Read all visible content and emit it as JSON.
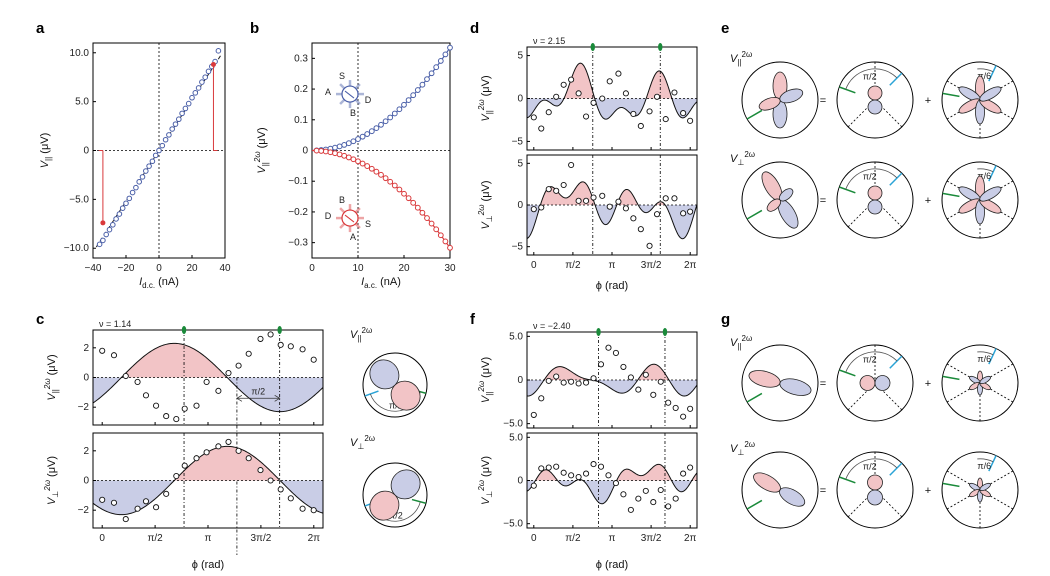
{
  "colors": {
    "blue": "#4a5fa8",
    "red": "#d9393b",
    "pink": "#f2c4c6",
    "lightblue": "#c9cde6",
    "green": "#1a8a3a",
    "cyan": "#2aa3d6",
    "gray": "#888888"
  },
  "phi_ticks": [
    "0",
    "π/2",
    "π",
    "3π/2",
    "2π"
  ],
  "chart_data": [
    {
      "id": "a",
      "panel": "a",
      "type": "scatter",
      "xlabel": "I",
      "xlabel_sub": "d.c.",
      "xlabel_unit": "(nA)",
      "ylabel": "V",
      "ylabel_sub": "||",
      "ylabel_unit": "(μV)",
      "xlim": [
        -40,
        40
      ],
      "ylim": [
        -11,
        11
      ],
      "xticks": [
        -40,
        -20,
        0,
        20,
        40
      ],
      "xtick_labels": [
        "−40",
        "−20",
        "0",
        "20",
        "40"
      ],
      "yticks": [
        -10,
        -5,
        0,
        5,
        10
      ],
      "ytick_labels": [
        "−10.0",
        "−5.0",
        "0",
        "5.0",
        "10.0"
      ],
      "x": [
        -36,
        -34,
        -32,
        -30,
        -28,
        -26,
        -24,
        -22,
        -20,
        -18,
        -16,
        -14,
        -12,
        -10,
        -8,
        -6,
        -4,
        -2,
        0,
        2,
        4,
        6,
        8,
        10,
        12,
        14,
        16,
        18,
        20,
        22,
        24,
        26,
        28,
        30,
        32,
        34,
        36
      ],
      "y": [
        -9.6,
        -9.2,
        -8.6,
        -8.1,
        -7.6,
        -7.0,
        -6.5,
        -5.9,
        -5.4,
        -4.9,
        -4.3,
        -3.8,
        -3.2,
        -2.7,
        -2.1,
        -1.6,
        -1.1,
        -0.5,
        0,
        0.5,
        1.1,
        1.6,
        2.2,
        2.7,
        3.2,
        3.8,
        4.3,
        4.8,
        5.4,
        5.9,
        6.4,
        7.0,
        7.5,
        8.1,
        8.6,
        9.1,
        10.2
      ],
      "highlight_points": [
        {
          "x": -34,
          "y": -7.4
        },
        {
          "x": 33,
          "y": 8.8
        }
      ],
      "fit_slope": 0.26
    },
    {
      "id": "b",
      "panel": "b",
      "type": "scatter",
      "xlabel": "I",
      "xlabel_sub": "a.c.",
      "xlabel_unit": "(nA)",
      "ylabel": "V",
      "ylabel_sub": "||",
      "ylabel_sup": "2ω",
      "ylabel_unit": "(μV)",
      "xlim": [
        0,
        30
      ],
      "ylim": [
        -0.35,
        0.35
      ],
      "xticks": [
        0,
        10,
        20,
        30
      ],
      "xtick_labels": [
        "0",
        "10",
        "20",
        "30"
      ],
      "yticks": [
        -0.3,
        -0.2,
        -0.1,
        0,
        0.1,
        0.2,
        0.3
      ],
      "ytick_labels": [
        "−0.3",
        "−0.2",
        "−0.1",
        "0",
        "0.1",
        "0.2",
        "0.3"
      ],
      "series": [
        {
          "name": "blue",
          "color": "#4a5fa8",
          "coef": 0.000372
        },
        {
          "name": "red",
          "color": "#d9393b",
          "coef": -0.000352
        }
      ],
      "x": [
        0,
        1,
        2,
        3,
        4,
        5,
        6,
        7,
        8,
        9,
        10,
        11,
        12,
        13,
        14,
        15,
        16,
        17,
        18,
        19,
        20,
        21,
        22,
        23,
        24,
        25,
        26,
        27,
        28,
        29,
        30
      ],
      "inset_labels_top": [
        "A",
        "S",
        "D",
        "B"
      ],
      "inset_labels_bottom": [
        "D",
        "B",
        "S",
        "A"
      ]
    },
    {
      "id": "c_top",
      "panel": "c",
      "type": "scatter-line",
      "nu_label": "ν = 1.14",
      "ylabel": "V",
      "ylabel_sub": "||",
      "ylabel_sup": "2ω",
      "ylabel_unit": "(μV)",
      "ylim": [
        -3.2,
        3.2
      ],
      "yticks": [
        -2,
        0,
        2
      ],
      "ytick_labels": [
        "−2",
        "0",
        "2"
      ],
      "x": [
        0,
        0.35,
        0.7,
        1.05,
        1.3,
        1.6,
        1.9,
        2.2,
        2.45,
        2.8,
        3.1,
        3.45,
        3.75,
        4.05,
        4.35,
        4.7,
        5.0,
        5.3,
        5.6,
        5.95,
        6.28
      ],
      "y": [
        1.8,
        1.5,
        0.1,
        -0.3,
        -1.2,
        -1.9,
        -2.6,
        -2.8,
        -2.1,
        -1.9,
        -0.3,
        -0.9,
        0.3,
        0.8,
        1.6,
        2.6,
        2.9,
        2.2,
        2.1,
        1.9,
        1.2
      ],
      "fit": {
        "a": 2.3,
        "phase": -0.57
      },
      "vlines": [
        2.43,
        5.27
      ],
      "annotation": "π/2"
    },
    {
      "id": "c_bot",
      "panel": "c",
      "type": "scatter-line",
      "ylabel": "V",
      "ylabel_sub": "⊥",
      "ylabel_sup": "2ω",
      "ylabel_unit": "(μV)",
      "ylim": [
        -3.2,
        3.2
      ],
      "yticks": [
        -2,
        0,
        2
      ],
      "ytick_labels": [
        "−2",
        "0",
        "2"
      ],
      "x": [
        0,
        0.35,
        0.7,
        1.05,
        1.3,
        1.6,
        1.9,
        2.2,
        2.45,
        2.8,
        3.1,
        3.45,
        3.75,
        4.05,
        4.35,
        4.7,
        5.0,
        5.3,
        5.6,
        5.95,
        6.28
      ],
      "y": [
        -1.3,
        -1.5,
        -2.6,
        -1.9,
        -1.4,
        -1.8,
        -0.9,
        0.3,
        1.0,
        1.5,
        1.9,
        2.3,
        2.6,
        2.0,
        1.5,
        0.7,
        0.0,
        -0.6,
        -1.2,
        -1.9,
        -2.0
      ],
      "fit": {
        "a": 2.3,
        "phase": -2.14
      },
      "vlines": [
        2.43,
        5.27
      ]
    },
    {
      "id": "d_top",
      "panel": "d",
      "type": "scatter-line",
      "nu_label": "ν = 2.15",
      "ylabel": "V",
      "ylabel_sub": "||",
      "ylabel_sup": "2ω",
      "ylabel_unit": "(μV)",
      "ylim": [
        -6,
        6
      ],
      "yticks": [
        -5,
        0,
        5
      ],
      "ytick_labels": [
        "−5",
        "0",
        "5"
      ],
      "x": [
        0,
        0.3,
        0.6,
        0.9,
        1.2,
        1.5,
        1.8,
        2.1,
        2.4,
        2.75,
        3.05,
        3.4,
        3.7,
        4.0,
        4.3,
        4.65,
        4.95,
        5.3,
        5.65,
        6.0,
        6.28
      ],
      "y": [
        -2.2,
        -3.5,
        -1.6,
        0.2,
        1.6,
        2.2,
        0.6,
        -2.1,
        -0.5,
        0.0,
        2.0,
        2.9,
        0.6,
        -1.8,
        -3.2,
        -1.5,
        0.2,
        -2.4,
        0.7,
        -1.7,
        -2.6
      ],
      "fit": {
        "terms": [
          [
            1,
            0.6,
            0.4
          ],
          [
            2,
            -2.2,
            1.1
          ],
          [
            4,
            1.5,
            0.2
          ]
        ]
      },
      "vlines": [
        2.37,
        5.08
      ]
    },
    {
      "id": "d_bot",
      "panel": "d",
      "type": "scatter-line",
      "ylabel": "V",
      "ylabel_sub": "⊥",
      "ylabel_sup": "2ω",
      "ylabel_unit": "(μV)",
      "ylim": [
        -6,
        6
      ],
      "yticks": [
        -5,
        0,
        5
      ],
      "ytick_labels": [
        "−5",
        "0",
        "5"
      ],
      "x": [
        0,
        0.3,
        0.6,
        0.9,
        1.2,
        1.5,
        1.8,
        2.1,
        2.4,
        2.75,
        3.05,
        3.4,
        3.7,
        4.0,
        4.3,
        4.65,
        4.95,
        5.3,
        5.65,
        6.0,
        6.28
      ],
      "y": [
        -0.5,
        -0.3,
        1.9,
        1.7,
        2.4,
        4.8,
        0.5,
        0.5,
        0.9,
        1.1,
        -0.2,
        0.4,
        -0.4,
        -1.6,
        -2.9,
        -4.9,
        -1.1,
        0.8,
        0.8,
        -1.0,
        -0.8
      ],
      "fit": {
        "terms": [
          [
            1,
            1.2,
            -0.5
          ],
          [
            2,
            1.6,
            -0.9
          ],
          [
            4,
            1.6,
            -0.5
          ]
        ]
      },
      "vlines": [
        2.37,
        5.08
      ]
    },
    {
      "id": "f_top",
      "panel": "f",
      "type": "scatter-line",
      "nu_label": "ν = −2.40",
      "ylabel": "V",
      "ylabel_sub": "||",
      "ylabel_sup": "2ω",
      "ylabel_unit": "(μV)",
      "ylim": [
        -5.5,
        5.5
      ],
      "yticks": [
        -5,
        0,
        5
      ],
      "ytick_labels": [
        "−5.0",
        "0",
        "5.0"
      ],
      "x": [
        0,
        0.3,
        0.6,
        0.9,
        1.2,
        1.5,
        1.8,
        2.1,
        2.4,
        2.7,
        3.0,
        3.3,
        3.6,
        3.9,
        4.2,
        4.5,
        4.8,
        5.1,
        5.4,
        5.7,
        6.0,
        6.28
      ],
      "y": [
        -4.0,
        -2.1,
        -0.1,
        0.4,
        -0.3,
        -0.2,
        -0.4,
        -0.3,
        0.2,
        1.8,
        3.7,
        3.1,
        1.5,
        0.3,
        -1.1,
        0.6,
        -1.7,
        -0.2,
        -2.6,
        -3.2,
        -4.2,
        -3.3
      ],
      "fit": {
        "terms": [
          [
            1,
            0.3,
            0.8
          ],
          [
            2,
            -1.3,
            1.7
          ],
          [
            3,
            0.8,
            -0.6
          ]
        ]
      },
      "vlines": [
        2.6,
        5.27
      ]
    },
    {
      "id": "f_bot",
      "panel": "f",
      "type": "scatter-line",
      "ylabel": "V",
      "ylabel_sub": "⊥",
      "ylabel_sup": "2ω",
      "ylabel_unit": "(μV)",
      "ylim": [
        -5.5,
        5.5
      ],
      "yticks": [
        -5,
        0,
        5
      ],
      "ytick_labels": [
        "−5.0",
        "0",
        "5.0"
      ],
      "x": [
        0,
        0.3,
        0.6,
        0.9,
        1.2,
        1.5,
        1.8,
        2.1,
        2.4,
        2.7,
        3.0,
        3.3,
        3.6,
        3.9,
        4.2,
        4.5,
        4.8,
        5.1,
        5.4,
        5.7,
        6.0,
        6.28
      ],
      "y": [
        -0.6,
        1.4,
        1.5,
        1.6,
        0.9,
        0.6,
        0.4,
        0.8,
        1.9,
        1.6,
        0.6,
        -0.3,
        -1.6,
        -3.4,
        -2.1,
        -1.2,
        -2.5,
        -1.1,
        -3.0,
        -2.1,
        0.8,
        1.5
      ],
      "fit": {
        "terms": [
          [
            1,
            -0.9,
            -0.5
          ],
          [
            2,
            1.0,
            -0.7
          ],
          [
            4,
            1.0,
            -0.1
          ]
        ]
      },
      "vlines": [
        2.6,
        5.27
      ]
    }
  ],
  "panels": {
    "a": {
      "letter": "a"
    },
    "b": {
      "letter": "b"
    },
    "c": {
      "letter": "c",
      "xlabel": "ϕ (rad)"
    },
    "d": {
      "letter": "d",
      "xlabel": "ϕ (rad)"
    },
    "e": {
      "letter": "e"
    },
    "f": {
      "letter": "f",
      "xlabel": "ϕ (rad)"
    },
    "g": {
      "letter": "g"
    }
  },
  "polar": {
    "c_top_label": "V",
    "c_bot_label": "V",
    "angle_pi2": "π/2",
    "angle_pi6": "π/6",
    "equals": "=",
    "plus": "+"
  }
}
